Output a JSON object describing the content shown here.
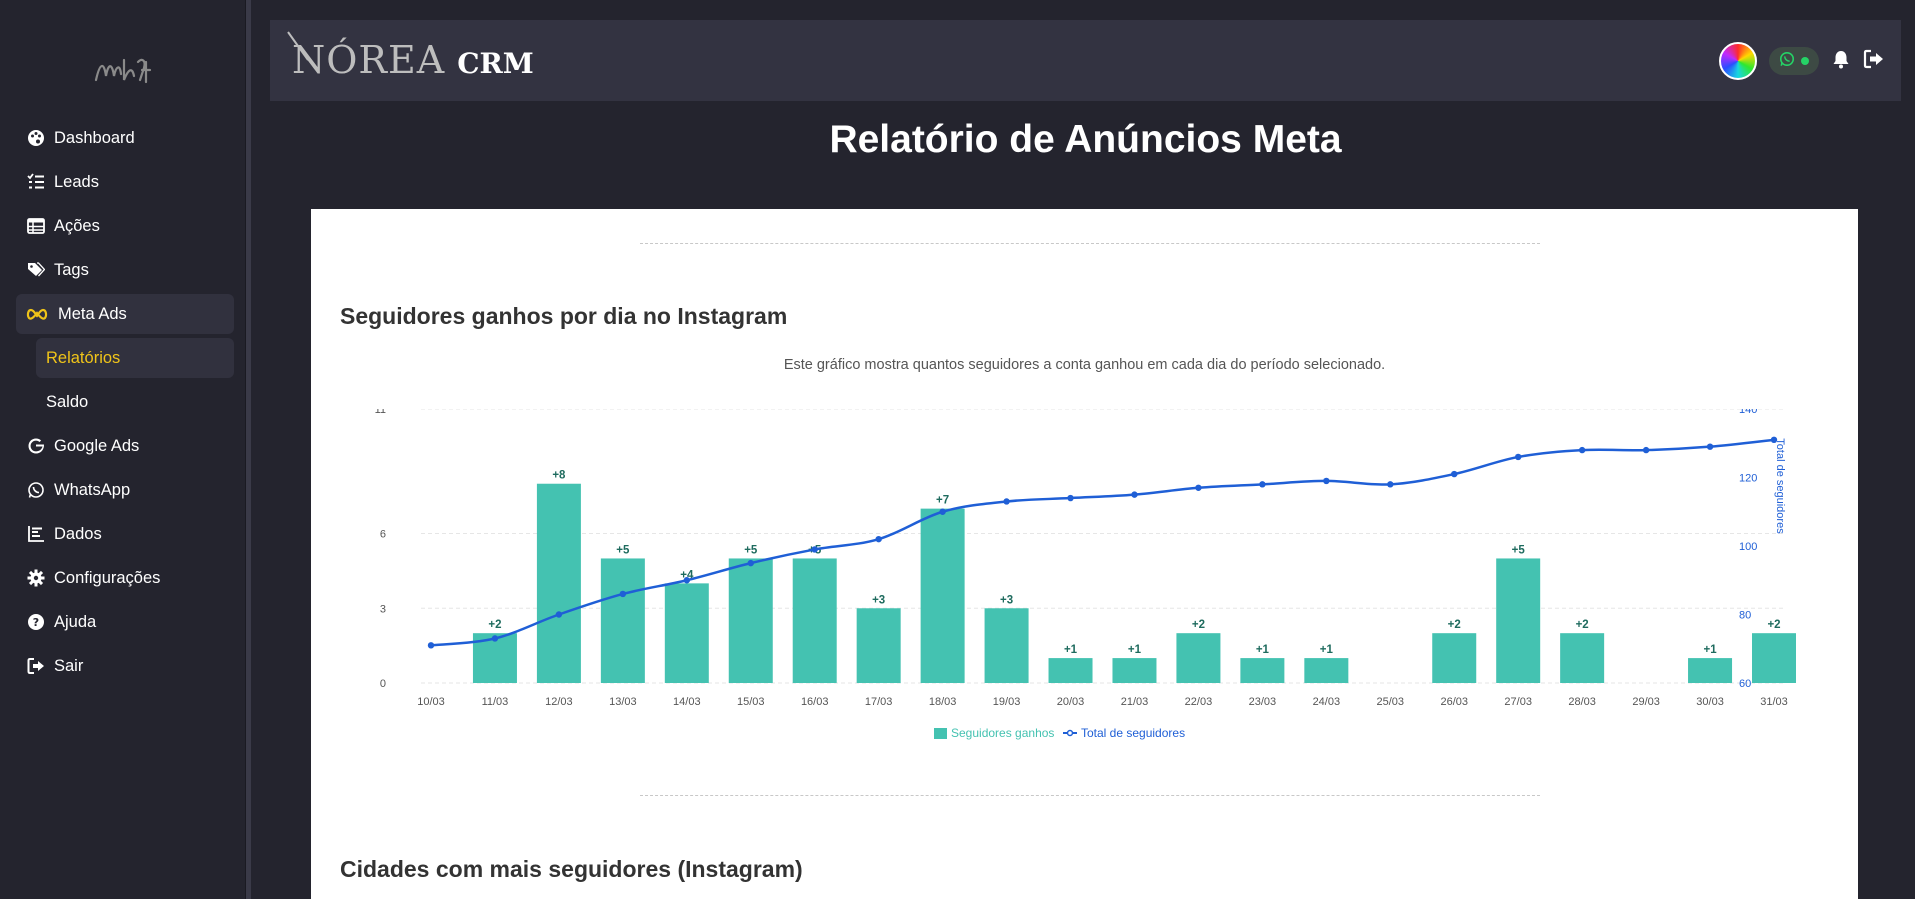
{
  "sidebar": {
    "logo_text": "ᨓᨊᨛᨉ",
    "items": [
      {
        "label": "Dashboard",
        "icon": "palette-icon"
      },
      {
        "label": "Leads",
        "icon": "list-check-icon"
      },
      {
        "label": "Ações",
        "icon": "table-icon"
      },
      {
        "label": "Tags",
        "icon": "tags-icon"
      },
      {
        "label": "Meta Ads",
        "icon": "meta-icon"
      },
      {
        "label": "Relatórios",
        "icon": ""
      },
      {
        "label": "Saldo",
        "icon": ""
      },
      {
        "label": "Google Ads",
        "icon": "google-icon"
      },
      {
        "label": "WhatsApp",
        "icon": "whatsapp-icon"
      },
      {
        "label": "Dados",
        "icon": "chart-icon"
      },
      {
        "label": "Configurações",
        "icon": "gear-icon"
      },
      {
        "label": "Ajuda",
        "icon": "question-icon"
      },
      {
        "label": "Sair",
        "icon": "logout-icon"
      }
    ]
  },
  "header": {
    "brand_name": "NÓREA",
    "brand_suffix": "CRM"
  },
  "page": {
    "title": "Relatório de Anúncios Meta"
  },
  "sections": {
    "followers_title": "Seguidores ganhos por dia no Instagram",
    "followers_desc": "Este gráfico mostra quantos seguidores a conta ganhou em cada dia do período selecionado.",
    "cities_title": "Cidades com mais seguidores (Instagram)"
  },
  "colors": {
    "accent_yellow": "#f0c419",
    "bar": "#44c2b1",
    "bar_label": "#1e6b5e",
    "line": "#1f5fd6"
  },
  "chart_data": {
    "type": "bar",
    "categories": [
      "10/03",
      "11/03",
      "12/03",
      "13/03",
      "14/03",
      "15/03",
      "16/03",
      "17/03",
      "18/03",
      "19/03",
      "20/03",
      "21/03",
      "22/03",
      "23/03",
      "24/03",
      "25/03",
      "26/03",
      "27/03",
      "28/03",
      "29/03",
      "30/03",
      "31/03"
    ],
    "series": [
      {
        "name": "Seguidores ganhos",
        "type": "bar",
        "axis": "left",
        "values": [
          0,
          2,
          8,
          5,
          4,
          5,
          5,
          3,
          7,
          3,
          1,
          1,
          2,
          1,
          1,
          0,
          2,
          5,
          2,
          0,
          1,
          2
        ]
      },
      {
        "name": "Total de seguidores",
        "type": "line",
        "axis": "right",
        "values": [
          71,
          73,
          80,
          86,
          90,
          95,
          99,
          102,
          110,
          113,
          114,
          115,
          117,
          118,
          119,
          118,
          121,
          126,
          128,
          128,
          129,
          131
        ]
      }
    ],
    "bar_labels": [
      "",
      "+2",
      "+8",
      "+5",
      "+4",
      "+5",
      "+5",
      "+3",
      "+7",
      "+3",
      "+1",
      "+1",
      "+2",
      "+1",
      "+1",
      "",
      "+2",
      "+5",
      "+2",
      "",
      "+1",
      "+2"
    ],
    "y_left_ticks": [
      0,
      3,
      6,
      11
    ],
    "y_right_ticks": [
      60,
      80,
      100,
      120,
      140
    ],
    "y_right_label": "Total de seguidores",
    "y_left_range": [
      0,
      11
    ],
    "y_right_range": [
      60,
      140
    ],
    "legend": [
      "Seguidores ganhos",
      "Total de seguidores"
    ],
    "legend_position": "bottom"
  }
}
